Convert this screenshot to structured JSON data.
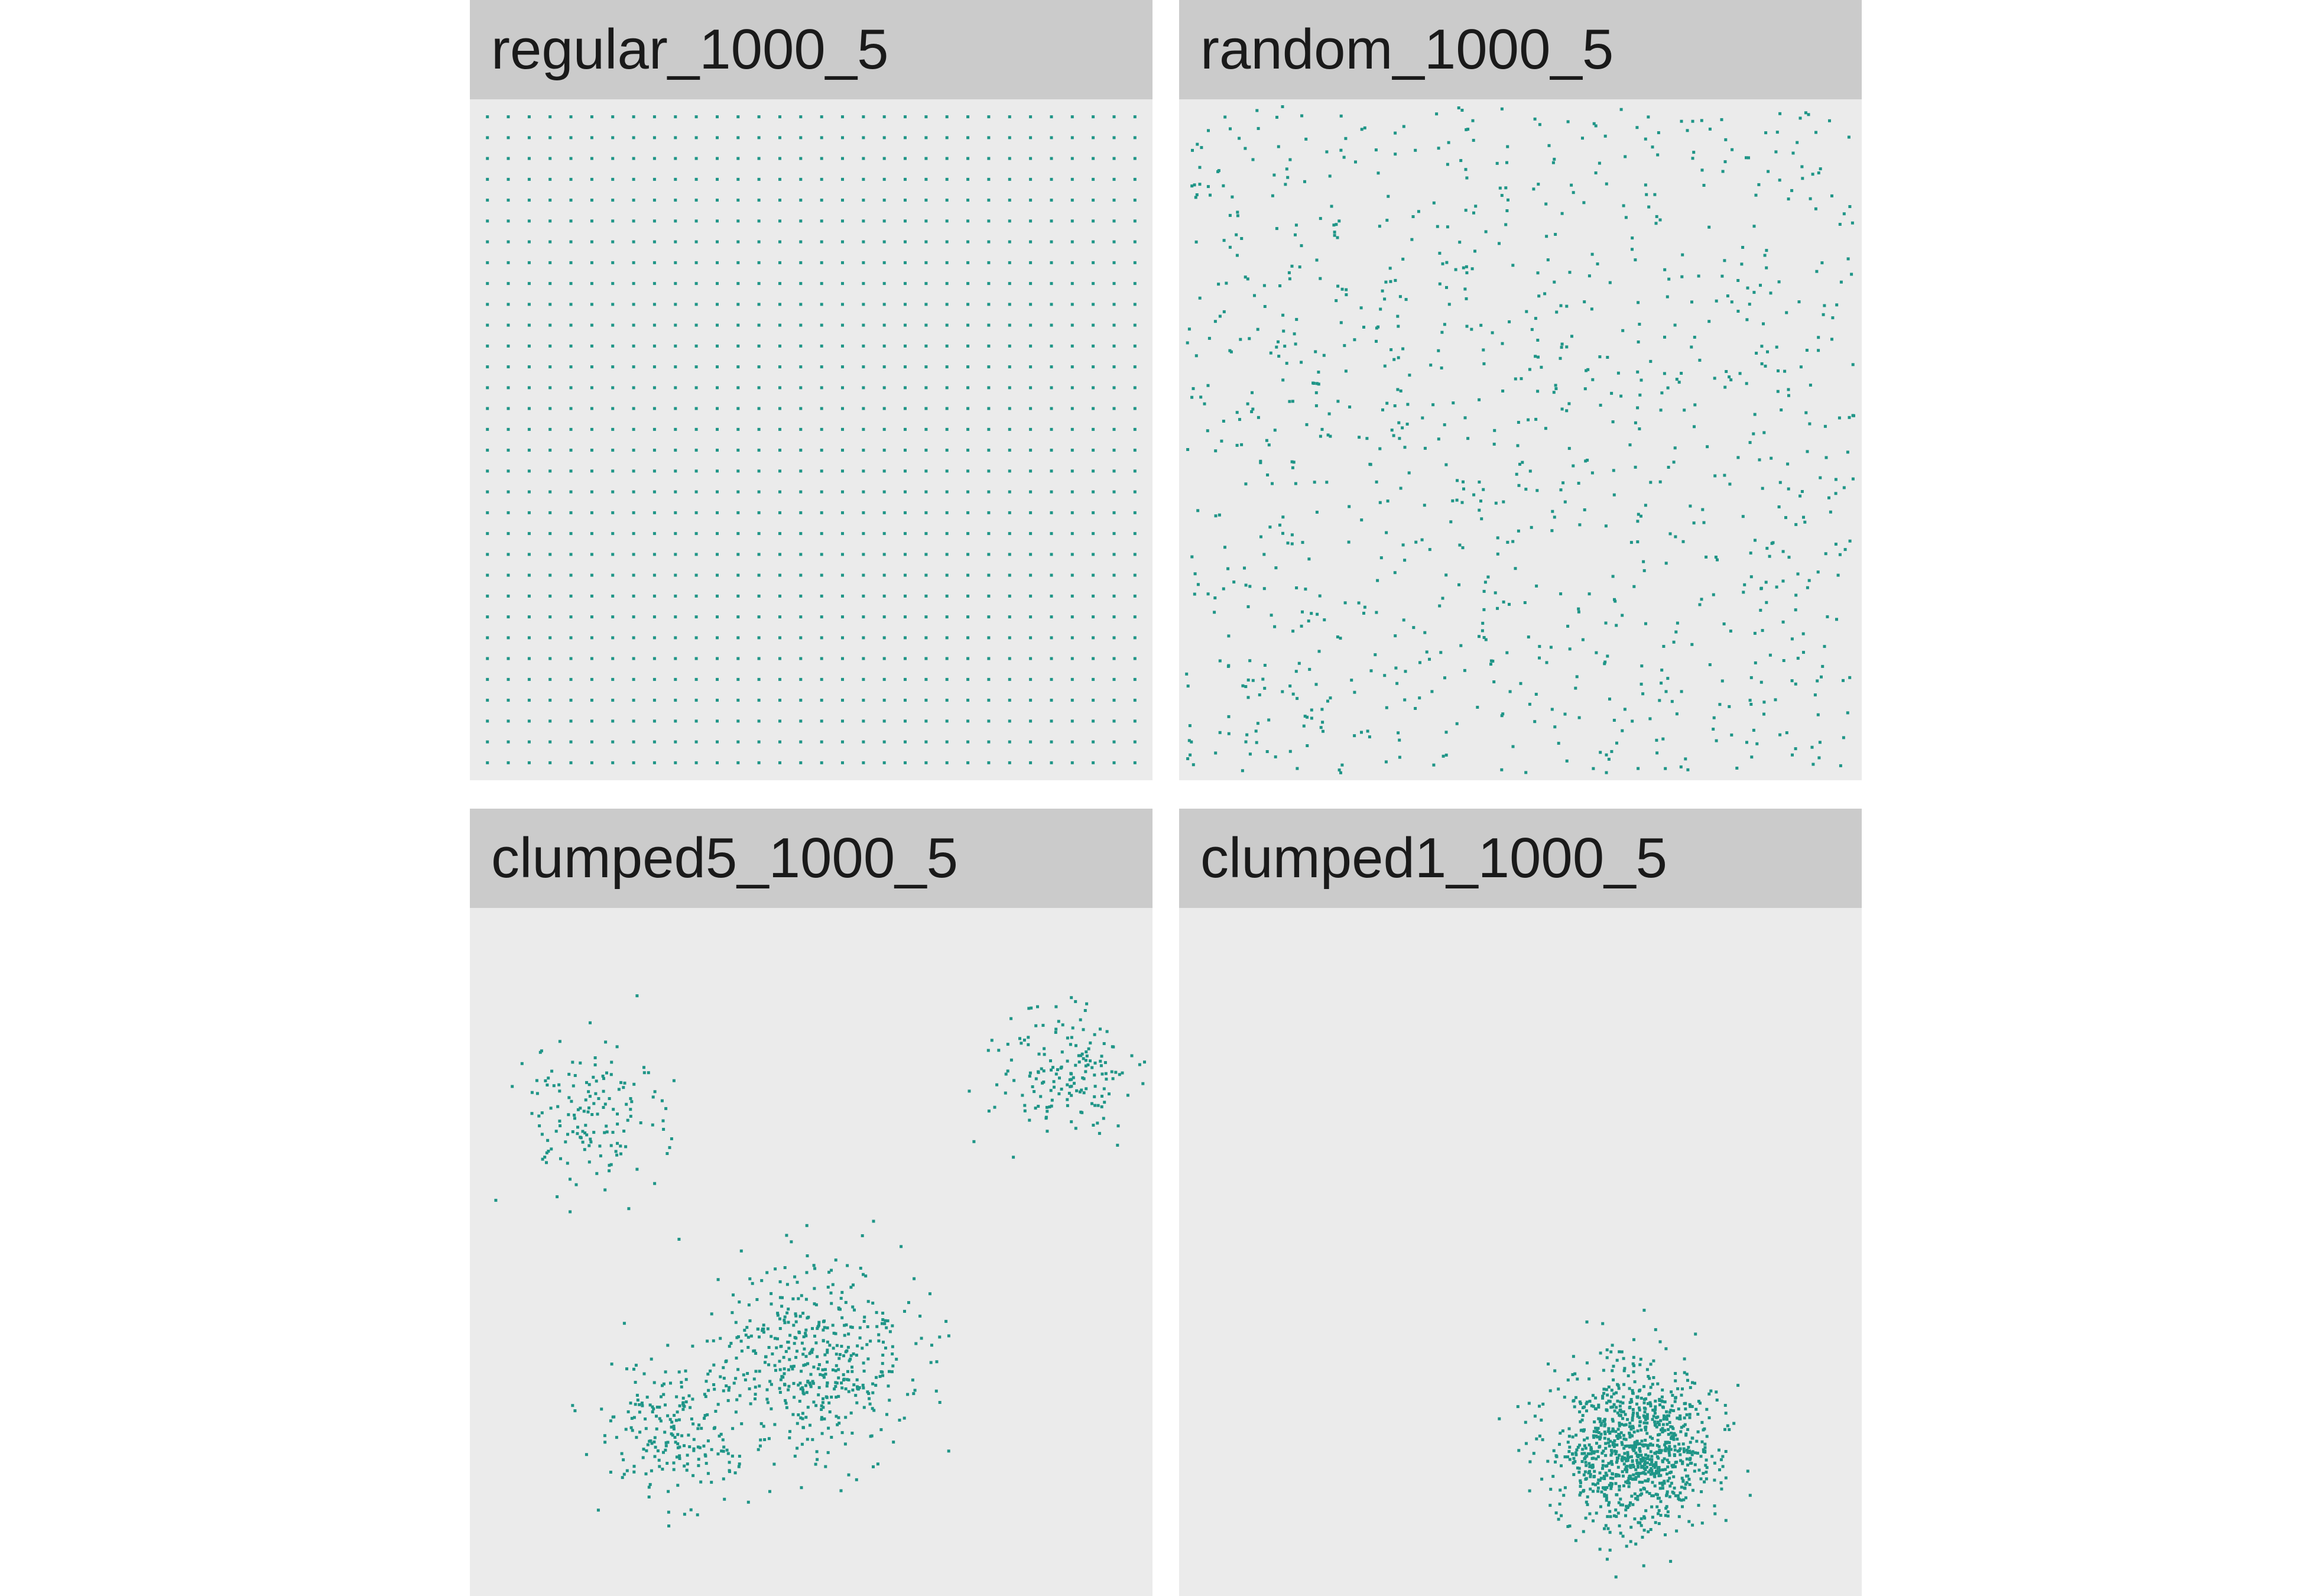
{
  "chart_data": [
    {
      "type": "scatter",
      "title": "regular_1000_5",
      "pattern": "regular",
      "n_points": 1000,
      "grid_dims": [
        32,
        32
      ],
      "xlim": [
        0,
        1
      ],
      "ylim": [
        0,
        1
      ],
      "grid": false,
      "point_color": "#1f9587"
    },
    {
      "type": "scatter",
      "title": "random_1000_5",
      "pattern": "random",
      "n_points": 1000,
      "seed": 11,
      "xlim": [
        0,
        1
      ],
      "ylim": [
        0,
        1
      ],
      "grid": false,
      "point_color": "#1f9587"
    },
    {
      "type": "scatter",
      "title": "clumped5_1000_5",
      "pattern": "clumped",
      "n_points": 1000,
      "seed": 23,
      "clusters": [
        {
          "cx": 0.17,
          "cy": 0.7,
          "sd": 0.055,
          "n": 150
        },
        {
          "cx": 0.88,
          "cy": 0.76,
          "sd": 0.05,
          "n": 170
        },
        {
          "cx": 0.52,
          "cy": 0.33,
          "sd": 0.065,
          "n": 360
        },
        {
          "cx": 0.29,
          "cy": 0.23,
          "sd": 0.055,
          "n": 200
        },
        {
          "cx": 0.43,
          "cy": 0.36,
          "sd": 0.07,
          "n": 120
        }
      ],
      "xlim": [
        0,
        1
      ],
      "ylim": [
        0,
        1
      ],
      "grid": false,
      "point_color": "#1f9587"
    },
    {
      "type": "scatter",
      "title": "clumped1_1000_5",
      "pattern": "clumped",
      "n_points": 1000,
      "seed": 37,
      "clusters": [
        {
          "cx": 0.67,
          "cy": 0.21,
          "sd": 0.06,
          "n": 1000
        }
      ],
      "xlim": [
        0,
        1
      ],
      "ylim": [
        0,
        1
      ],
      "grid": false,
      "point_color": "#1f9587"
    }
  ]
}
